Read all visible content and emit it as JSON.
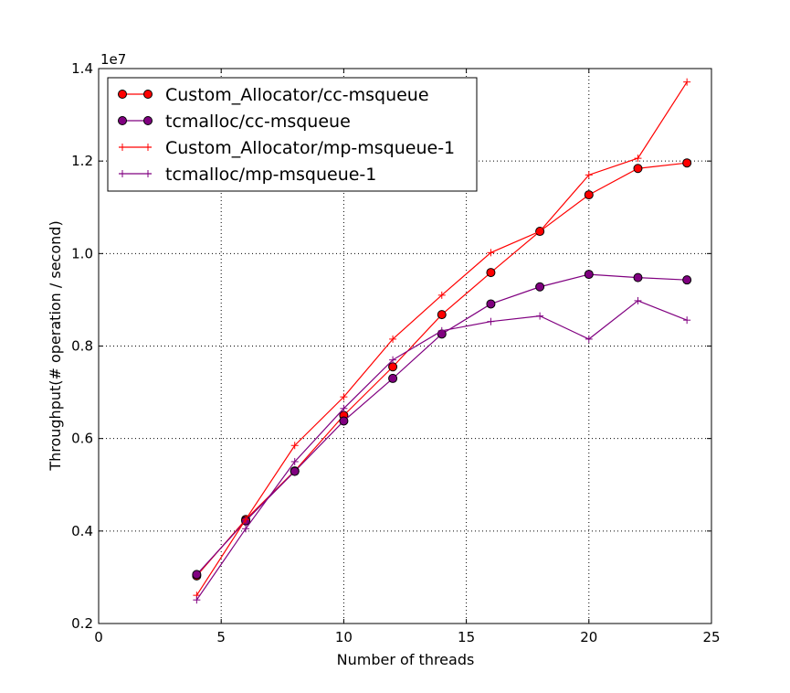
{
  "chart_data": {
    "type": "line",
    "title": "",
    "xlabel": "Number of threads",
    "ylabel": "Throughput(# operation / second)",
    "y_scale_label": "1e7",
    "xlim": [
      0,
      25
    ],
    "ylim": [
      0.2,
      1.4
    ],
    "xticks": [
      0,
      5,
      10,
      15,
      20,
      25
    ],
    "yticks": [
      0.2,
      0.4,
      0.6,
      0.8,
      1.0,
      1.2,
      1.4
    ],
    "xtick_labels": [
      "0",
      "5",
      "10",
      "15",
      "20",
      "25"
    ],
    "ytick_labels": [
      "0.2",
      "0.4",
      "0.6",
      "0.8",
      "1.0",
      "1.2",
      "1.4"
    ],
    "grid": true,
    "legend_position": "upper-left",
    "x": [
      4,
      6,
      8,
      10,
      12,
      14,
      16,
      18,
      20,
      22,
      24
    ],
    "series": [
      {
        "name": "Custom_Allocator/cc-msqueue",
        "color": "#ff0000",
        "marker": "circle",
        "values": [
          0.303,
          0.425,
          0.53,
          0.65,
          0.755,
          0.868,
          0.959,
          1.048,
          1.127,
          1.184,
          1.196
        ]
      },
      {
        "name": "tcmalloc/cc-msqueue",
        "color": "#800080",
        "marker": "circle",
        "values": [
          0.306,
          0.422,
          0.529,
          0.638,
          0.73,
          0.826,
          0.891,
          0.928,
          0.955,
          0.948,
          0.943
        ]
      },
      {
        "name": "Custom_Allocator/mp-msqueue-1",
        "color": "#ff0000",
        "marker": "plus",
        "values": [
          0.261,
          0.425,
          0.585,
          0.69,
          0.815,
          0.91,
          1.002,
          1.048,
          1.17,
          1.206,
          1.371
        ]
      },
      {
        "name": "tcmalloc/mp-msqueue-1",
        "color": "#800080",
        "marker": "plus",
        "values": [
          0.251,
          0.405,
          0.55,
          0.665,
          0.77,
          0.833,
          0.853,
          0.865,
          0.815,
          0.898,
          0.856
        ]
      }
    ]
  }
}
